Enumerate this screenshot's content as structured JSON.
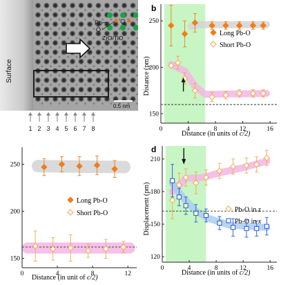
{
  "panel_a": {
    "surface_label": "Surface",
    "pb_label": "Pb",
    "o_label": "O",
    "zro_label": "ZrO/TiO",
    "scale_label": "0.5 nm",
    "row_numbers": [
      "1",
      "2",
      "3",
      "4",
      "5",
      "6",
      "7",
      "8"
    ]
  },
  "colors": {
    "long": "#f07d1a",
    "short": "#f7a54a",
    "pink_band": "#f4b6e5",
    "gray_band": "#d4d4d4",
    "blue": "#2457d6",
    "light_blue_band": "#a9cdf2",
    "green_region": "#c8f5c4",
    "pb_atom": "#1aa34a",
    "o_atom": "#e46d23"
  },
  "chart_data": [
    {
      "panel": "b",
      "type": "scatter",
      "xlabel": "Distance (in units of c/2)",
      "ylabel": "Distance (pm)",
      "xlim": [
        0,
        17
      ],
      "ylim": [
        140,
        268
      ],
      "xticks": [
        0,
        4,
        8,
        12,
        16
      ],
      "yticks": [
        150,
        200,
        250
      ],
      "dashed_line_y": 160,
      "green_region_x": [
        0.5,
        6.5
      ],
      "series": [
        {
          "name": "Long Pb-O",
          "marker": "filled-diamond",
          "x": [
            1.5,
            3.5,
            5.0,
            7.5,
            9.5,
            11.5,
            13.5,
            15.0
          ],
          "y": [
            245,
            236,
            248,
            245,
            245,
            245,
            245,
            245
          ],
          "err": [
            22,
            14,
            10,
            4,
            4,
            4,
            4,
            4
          ]
        },
        {
          "name": "Short Pb-O",
          "marker": "open-diamond",
          "x": [
            1.5,
            2.5,
            3.5,
            5.0,
            7.5,
            9.5,
            11.5,
            13.5,
            15.0
          ],
          "y": [
            202,
            205,
            188,
            175,
            168,
            170,
            172,
            172,
            172
          ],
          "err": [
            0,
            7,
            6,
            8,
            5,
            4,
            4,
            4,
            4
          ]
        }
      ]
    },
    {
      "panel": "c",
      "type": "scatter",
      "xlabel": "Distance (in unit of c/2)",
      "ylabel": "",
      "xlim": [
        0,
        13
      ],
      "ylim": [
        140,
        268
      ],
      "xticks": [
        0,
        4,
        8,
        12
      ],
      "yticks": [
        150,
        200,
        250
      ],
      "dashed_line_y": 162,
      "series": [
        {
          "name": "Long Pb-O",
          "marker": "filled-diamond",
          "x": [
            2.5,
            4.5,
            6.5,
            8.5,
            10.5
          ],
          "y": [
            247,
            250,
            248,
            249,
            245
          ],
          "err": [
            9,
            8,
            10,
            10,
            9
          ]
        },
        {
          "name": "Short Pb-O",
          "marker": "open-diamond",
          "x": [
            1.5,
            3.5,
            5.5,
            7.5,
            9.5,
            11.5
          ],
          "y": [
            163,
            160,
            161,
            158,
            160,
            162
          ],
          "err": [
            16,
            12,
            14,
            7,
            10,
            6
          ]
        }
      ]
    },
    {
      "panel": "d",
      "type": "scatter",
      "xlabel": "Distance (in units of c/2)",
      "ylabel": "Displacement (pm)",
      "xlim": [
        0,
        17
      ],
      "ylim": [
        115,
        222
      ],
      "xticks": [
        0,
        4,
        8,
        12,
        16
      ],
      "yticks": [
        120,
        150,
        180,
        210
      ],
      "dashed_line_y": 162,
      "green_region_x": [
        0.5,
        6.5
      ],
      "series": [
        {
          "name": "Pb-O in z",
          "marker": "open-diamond",
          "color": "orange",
          "x": [
            1.5,
            2.5,
            3.5,
            5.0,
            6.5,
            8.5,
            10.5,
            12.5,
            14.0,
            15.5
          ],
          "y": [
            172,
            186,
            193,
            188,
            193,
            199,
            203,
            204,
            205,
            211
          ],
          "err": [
            17,
            11,
            8,
            10,
            7,
            7,
            7,
            7,
            7,
            7
          ]
        },
        {
          "name": "Pb-O in x",
          "marker": "open-square",
          "color": "blue",
          "x": [
            1.5,
            2.5,
            3.5,
            5.0,
            6.5,
            8.5,
            10.5,
            12.5,
            14.0,
            15.5
          ],
          "y": [
            190,
            175,
            167,
            160,
            158,
            151,
            147,
            146,
            146,
            148
          ],
          "err": [
            15,
            8,
            8,
            8,
            6,
            6,
            8,
            8,
            7,
            8
          ]
        }
      ]
    }
  ],
  "labels": {
    "b_letter": "b",
    "d_letter": "d",
    "b_y_label": "Distance (pm)",
    "b_x_label": "Distance (in units of ",
    "b_x_unit": "c/2)",
    "c_x_label": "Distance (in unit of ",
    "c_x_unit": "c/2)",
    "d_y_label": "Displacement (pm)",
    "d_x_label": "Distance (in units of ",
    "d_x_unit": "c/2)",
    "leg_b_long": "Long Pb-O",
    "leg_b_short": "Short Pb-O",
    "leg_c_long": "Long Pb-O",
    "leg_c_short": "Short Pb-O",
    "leg_d_z_main": "Pb-O in ",
    "leg_d_z_axis": "z",
    "leg_d_x_main": "Pb-O in ",
    "leg_d_x_axis": "x"
  }
}
